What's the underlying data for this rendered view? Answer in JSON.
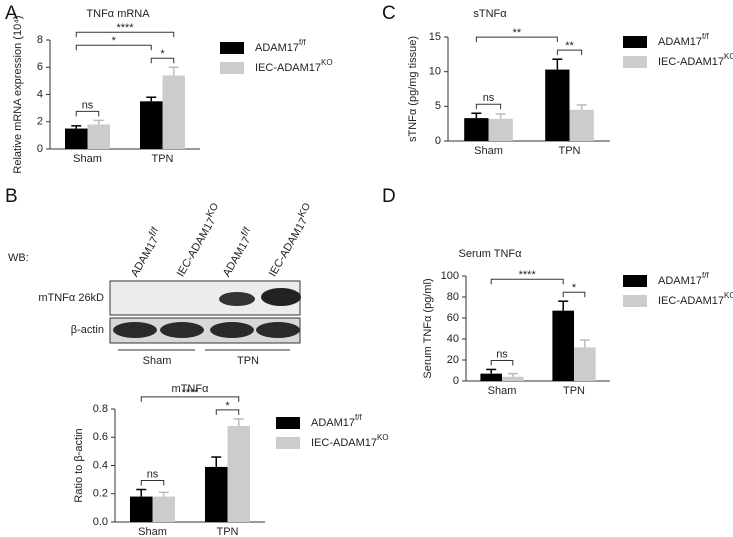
{
  "chart_data": [
    {
      "type": "bar",
      "panel": "A",
      "title": "TNFα mRNA",
      "y_label": "Relative mRNA expression (10⁴)",
      "categories": [
        "Sham",
        "TPN"
      ],
      "series": [
        {
          "name": "ADAM17",
          "name_superscript": "f/f",
          "color": "#000000",
          "values": [
            1.5,
            3.5
          ],
          "errors": [
            0.2,
            0.3
          ]
        },
        {
          "name": "IEC-ADAM17",
          "name_superscript": "KO",
          "color": "#cccccc",
          "values": [
            1.8,
            5.4
          ],
          "errors": [
            0.3,
            0.6
          ]
        }
      ],
      "ylim": [
        0,
        8
      ],
      "yticks": [
        0,
        2,
        4,
        6,
        8
      ],
      "annotations": [
        {
          "text": "ns",
          "from": [
            0,
            0
          ],
          "to": [
            1,
            0
          ]
        },
        {
          "text": "*",
          "from": [
            0,
            1
          ],
          "to": [
            1,
            1
          ]
        },
        {
          "text": "*",
          "from": [
            0,
            0
          ],
          "to": [
            0,
            1
          ]
        },
        {
          "text": "****",
          "from": [
            0,
            0
          ],
          "to": [
            1,
            1
          ]
        }
      ]
    },
    {
      "type": "bar",
      "panel": "C",
      "title": "sTNFα",
      "y_label": "sTNFα (pg/mg tissue)",
      "categories": [
        "Sham",
        "TPN"
      ],
      "series": [
        {
          "name": "ADAM17",
          "name_superscript": "f/f",
          "color": "#000000",
          "values": [
            3.3,
            10.3
          ],
          "errors": [
            0.7,
            1.5
          ]
        },
        {
          "name": "IEC-ADAM17",
          "name_superscript": "KO",
          "color": "#cccccc",
          "values": [
            3.2,
            4.5
          ],
          "errors": [
            0.7,
            0.7
          ]
        }
      ],
      "ylim": [
        0,
        15
      ],
      "yticks": [
        0,
        5,
        10,
        15
      ],
      "annotations": [
        {
          "text": "ns",
          "from": [
            0,
            0
          ],
          "to": [
            1,
            0
          ]
        },
        {
          "text": "**",
          "from": [
            0,
            1
          ],
          "to": [
            1,
            1
          ]
        },
        {
          "text": "**",
          "from": [
            0,
            0
          ],
          "to": [
            0,
            1
          ]
        }
      ]
    },
    {
      "type": "bar",
      "panel": "D",
      "title": "Serum TNFα",
      "y_label": "Serum TNFα (pg/ml)",
      "categories": [
        "Sham",
        "TPN"
      ],
      "series": [
        {
          "name": "ADAM17",
          "name_superscript": "f/f",
          "color": "#000000",
          "values": [
            7,
            67
          ],
          "errors": [
            4,
            9
          ]
        },
        {
          "name": "IEC-ADAM17",
          "name_superscript": "KO",
          "color": "#cccccc",
          "values": [
            4,
            32
          ],
          "errors": [
            3,
            7
          ]
        }
      ],
      "ylim": [
        0,
        100
      ],
      "yticks": [
        0,
        20,
        40,
        60,
        80,
        100
      ],
      "annotations": [
        {
          "text": "ns",
          "from": [
            0,
            0
          ],
          "to": [
            1,
            0
          ]
        },
        {
          "text": "*",
          "from": [
            0,
            1
          ],
          "to": [
            1,
            1
          ]
        },
        {
          "text": "****",
          "from": [
            0,
            0
          ],
          "to": [
            0,
            1
          ]
        }
      ]
    },
    {
      "type": "bar",
      "panel": "B",
      "title": "mTNFα",
      "y_label": "Ratio to β-actin",
      "categories": [
        "Sham",
        "TPN"
      ],
      "series": [
        {
          "name": "ADAM17",
          "name_superscript": "f/f",
          "color": "#000000",
          "values": [
            0.18,
            0.39
          ],
          "errors": [
            0.05,
            0.07
          ]
        },
        {
          "name": "IEC-ADAM17",
          "name_superscript": "KO",
          "color": "#cccccc",
          "values": [
            0.18,
            0.68
          ],
          "errors": [
            0.03,
            0.05
          ]
        }
      ],
      "ylim": [
        0,
        0.8
      ],
      "yticks": [
        {
          "value": 0,
          "label": "0.0"
        },
        {
          "value": 0.2,
          "label": "0.2"
        },
        {
          "value": 0.4,
          "label": "0.4"
        },
        {
          "value": 0.6,
          "label": "0.6"
        },
        {
          "value": 0.8,
          "label": "0.8"
        }
      ],
      "annotations": [
        {
          "text": "ns",
          "from": [
            0,
            0
          ],
          "to": [
            1,
            0
          ]
        },
        {
          "text": "*",
          "from": [
            0,
            1
          ],
          "to": [
            1,
            1
          ]
        },
        {
          "text": "****",
          "from": [
            0,
            0
          ],
          "to": [
            1,
            1
          ]
        }
      ]
    }
  ],
  "western_blot": {
    "prefix": "WB:",
    "lanes": [
      {
        "name": "ADAM17",
        "superscript": "f/f"
      },
      {
        "name": "IEC-ADAM17",
        "superscript": "KO"
      },
      {
        "name": "ADAM17",
        "superscript": "f/f"
      },
      {
        "name": "IEC-ADAM17",
        "superscript": "KO"
      }
    ],
    "rows": [
      "mTNFα 26kD",
      "β-actin"
    ],
    "groups": [
      "Sham",
      "TPN"
    ]
  }
}
